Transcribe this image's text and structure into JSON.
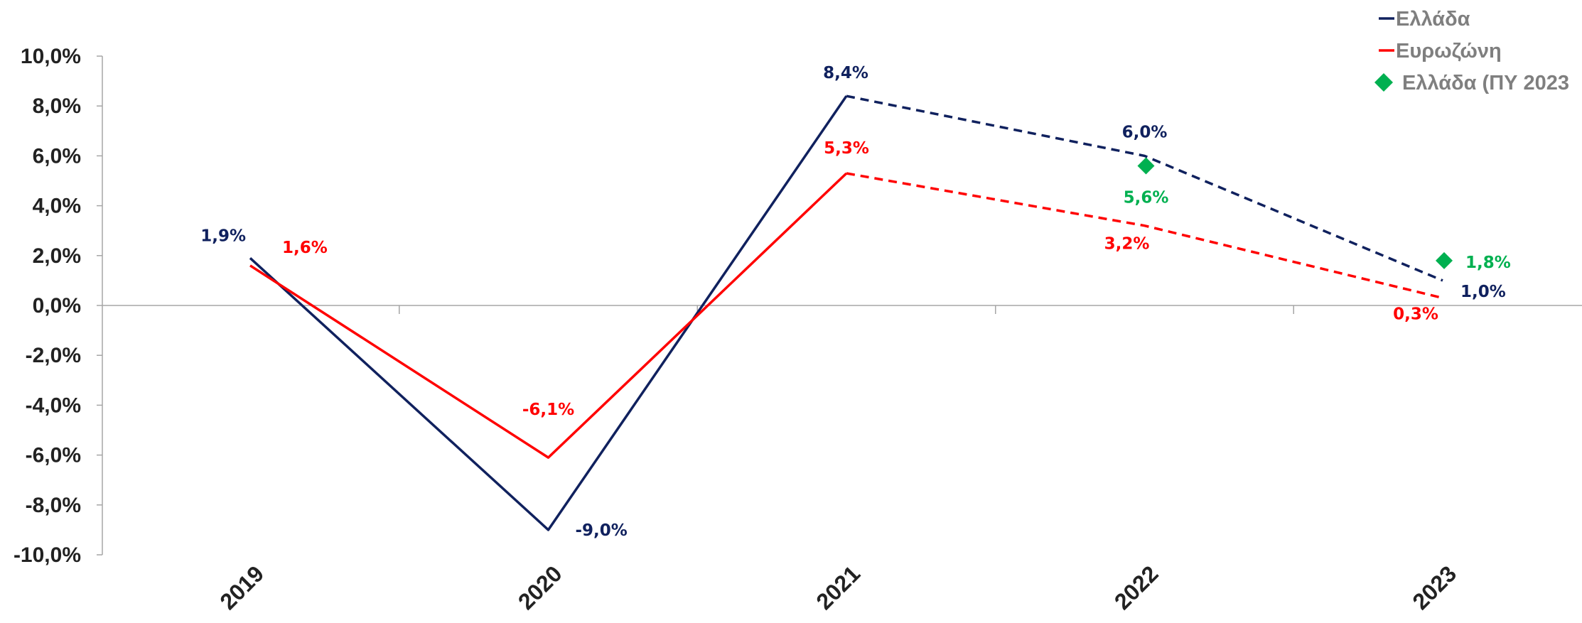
{
  "chart_data": {
    "type": "line",
    "title": "",
    "xlabel": "",
    "ylabel": "",
    "categories": [
      "2019",
      "2020",
      "2021",
      "2022",
      "2023"
    ],
    "ylim": [
      -10,
      10
    ],
    "yticks": [
      "10,0%",
      "8,0%",
      "6,0%",
      "4,0%",
      "2,0%",
      "0,0%",
      "-2,0%",
      "-4,0%",
      "-6,0%",
      "-8,0%",
      "-10,0%"
    ],
    "ytick_values": [
      10,
      8,
      6,
      4,
      2,
      0,
      -2,
      -4,
      -6,
      -8,
      -10
    ],
    "series": [
      {
        "name": "Ελλάδα",
        "color": "#10215e",
        "values": [
          1.9,
          -9.0,
          8.4,
          6.0,
          1.0
        ],
        "labels": [
          "1,9%",
          "-9,0%",
          "8,4%",
          "6,0%",
          "1,0%"
        ],
        "line_style": "solid through 2021, dashed from 2021 onwards"
      },
      {
        "name": "Ευρωζώνη",
        "color": "#ff0000",
        "values": [
          1.6,
          -6.1,
          5.3,
          3.2,
          0.3
        ],
        "labels": [
          "1,6%",
          "-6,1%",
          "5,3%",
          "3,2%",
          "0,3%"
        ],
        "line_style": "solid through 2021, dashed from 2021 onwards"
      },
      {
        "name": "Ελλάδα (ΠΥ 2023",
        "color": "#00b050",
        "marker": "diamond",
        "points": [
          {
            "x": "2022",
            "value": 5.6,
            "label": "5,6%"
          },
          {
            "x": "2023",
            "value": 1.8,
            "label": "1,8%"
          }
        ]
      }
    ],
    "grid": false,
    "legend_position": "top-right"
  }
}
